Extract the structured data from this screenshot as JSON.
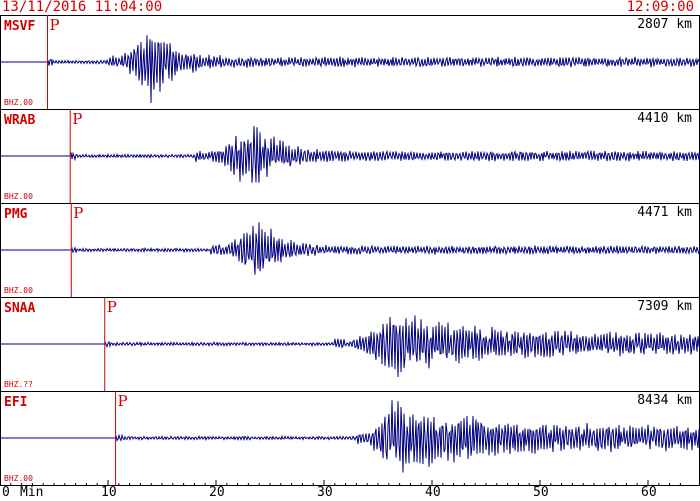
{
  "header": {
    "start_time": "13/11/2016 11:04:00",
    "end_time": "12:09:00"
  },
  "chart_data": {
    "type": "line",
    "xlabel": "Min",
    "x_ticks": [
      0,
      10,
      20,
      30,
      40,
      50,
      60
    ],
    "xlim": [
      0,
      64
    ],
    "colors": {
      "trace": "#000080",
      "label": "#d40000",
      "frame": "#000000"
    },
    "phase_label": "P",
    "stations": [
      {
        "name": "MSVF",
        "channel": "BHZ.00",
        "distance": "2807 km",
        "p_arrival_min": 4.4,
        "signal": {
          "start": 10.0,
          "peak": 14.0,
          "end": 22.0,
          "peak_amp": 0.95,
          "coda_amp": 0.12
        }
      },
      {
        "name": "WRAB",
        "channel": "BHZ.00",
        "distance": "4410 km",
        "p_arrival_min": 6.5,
        "signal": {
          "start": 18.0,
          "peak": 23.5,
          "end": 32.0,
          "peak_amp": 0.9,
          "coda_amp": 0.12
        }
      },
      {
        "name": "PMG",
        "channel": "BHZ.00",
        "distance": "4471 km",
        "p_arrival_min": 6.6,
        "signal": {
          "start": 19.5,
          "peak": 24.0,
          "end": 31.0,
          "peak_amp": 0.82,
          "coda_amp": 0.1
        }
      },
      {
        "name": "SNAA",
        "channel": "BHZ.??",
        "distance": "7309 km",
        "p_arrival_min": 9.7,
        "signal": {
          "start": 31.0,
          "peak": 36.5,
          "end": 64.0,
          "peak_amp": 0.8,
          "coda_amp": 0.25
        }
      },
      {
        "name": "EFI",
        "channel": "BHZ.00",
        "distance": "8434 km",
        "p_arrival_min": 10.7,
        "signal": {
          "start": 33.0,
          "peak": 36.3,
          "end": 64.0,
          "peak_amp": 0.9,
          "coda_amp": 0.3
        }
      }
    ]
  }
}
